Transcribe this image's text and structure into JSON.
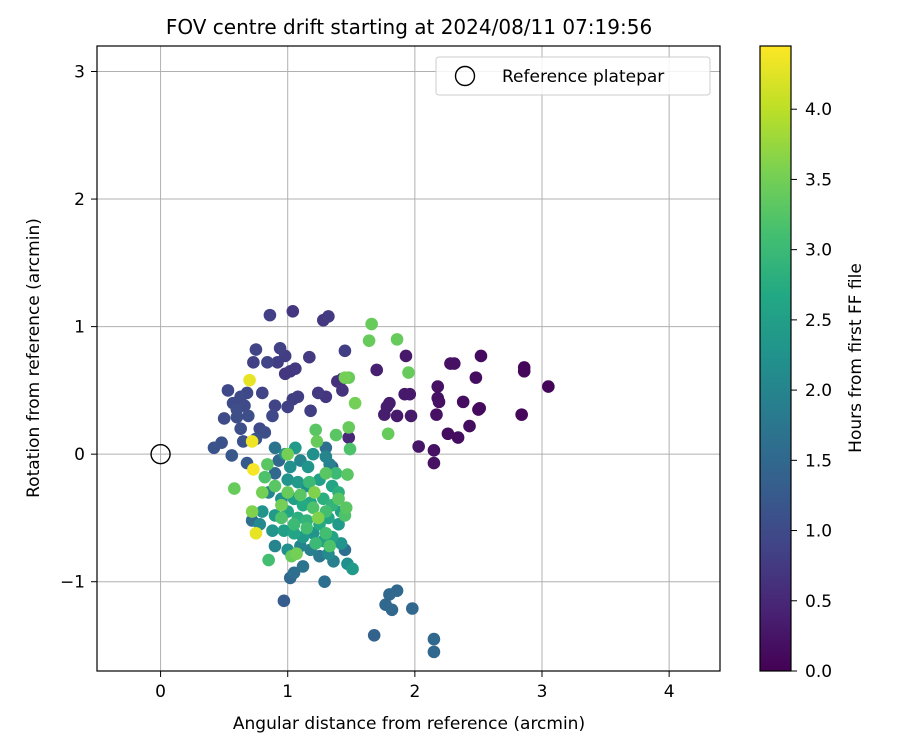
{
  "chart_data": {
    "type": "scatter",
    "title": "FOV centre drift starting at 2024/08/11 07:19:56",
    "xlabel": "Angular distance from reference (arcmin)",
    "ylabel": "Rotation from reference (arcmin)",
    "xlim": [
      -0.5,
      4.4
    ],
    "ylim": [
      -1.7,
      3.2
    ],
    "xticks": [
      0,
      1,
      2,
      3,
      4
    ],
    "xtick_labels": [
      "0",
      "1",
      "2",
      "3",
      "4"
    ],
    "yticks": [
      -1,
      0,
      1,
      2,
      3
    ],
    "ytick_labels": [
      "−1",
      "0",
      "1",
      "2",
      "3"
    ],
    "grid": true,
    "legend": {
      "placement": "top-right",
      "entries": [
        {
          "label": "Reference platepar",
          "marker": "open-circle"
        }
      ]
    },
    "reference_point": {
      "x": 0,
      "y": 0,
      "label": "Reference platepar"
    },
    "colorbar": {
      "label": "Hours from first FF file",
      "colormap": "viridis",
      "range": [
        0,
        4.45
      ],
      "ticks": [
        0.0,
        0.5,
        1.0,
        1.5,
        2.0,
        2.5,
        3.0,
        3.5,
        4.0
      ],
      "tick_labels": [
        "0.0",
        "0.5",
        "1.0",
        "1.5",
        "2.0",
        "2.5",
        "3.0",
        "3.5",
        "4.0"
      ]
    },
    "points": [
      {
        "x": 1.04,
        "y": 1.12,
        "t": 0.7
      },
      {
        "x": 1.28,
        "y": 1.05,
        "t": 0.7
      },
      {
        "x": 1.32,
        "y": 1.08,
        "t": 0.75
      },
      {
        "x": 0.86,
        "y": 1.09,
        "t": 0.85
      },
      {
        "x": 0.75,
        "y": 0.82,
        "t": 0.9
      },
      {
        "x": 0.94,
        "y": 0.83,
        "t": 0.85
      },
      {
        "x": 0.98,
        "y": 0.77,
        "t": 0.8
      },
      {
        "x": 0.73,
        "y": 0.72,
        "t": 0.85
      },
      {
        "x": 0.84,
        "y": 0.72,
        "t": 0.9
      },
      {
        "x": 0.92,
        "y": 0.72,
        "t": 0.8
      },
      {
        "x": 1.17,
        "y": 0.76,
        "t": 0.75
      },
      {
        "x": 1.45,
        "y": 0.81,
        "t": 0.8
      },
      {
        "x": 1.02,
        "y": 0.65,
        "t": 0.7
      },
      {
        "x": 1.06,
        "y": 0.67,
        "t": 0.75
      },
      {
        "x": 0.98,
        "y": 0.63,
        "t": 0.7
      },
      {
        "x": 1.39,
        "y": 0.57,
        "t": 0.6
      },
      {
        "x": 1.43,
        "y": 0.59,
        "t": 0.6
      },
      {
        "x": 0.53,
        "y": 0.5,
        "t": 0.95
      },
      {
        "x": 0.63,
        "y": 0.45,
        "t": 1.0
      },
      {
        "x": 0.68,
        "y": 0.48,
        "t": 0.95
      },
      {
        "x": 0.8,
        "y": 0.48,
        "t": 0.9
      },
      {
        "x": 0.57,
        "y": 0.4,
        "t": 1.0
      },
      {
        "x": 0.6,
        "y": 0.35,
        "t": 1.05
      },
      {
        "x": 0.66,
        "y": 0.38,
        "t": 1.0
      },
      {
        "x": 0.69,
        "y": 0.3,
        "t": 1.05
      },
      {
        "x": 0.5,
        "y": 0.28,
        "t": 1.0
      },
      {
        "x": 0.6,
        "y": 0.29,
        "t": 1.05
      },
      {
        "x": 0.9,
        "y": 0.38,
        "t": 0.9
      },
      {
        "x": 1.0,
        "y": 0.37,
        "t": 0.85
      },
      {
        "x": 1.04,
        "y": 0.43,
        "t": 0.8
      },
      {
        "x": 1.08,
        "y": 0.45,
        "t": 0.8
      },
      {
        "x": 1.24,
        "y": 0.48,
        "t": 0.75
      },
      {
        "x": 1.3,
        "y": 0.45,
        "t": 0.7
      },
      {
        "x": 1.43,
        "y": 0.5,
        "t": 0.65
      },
      {
        "x": 1.18,
        "y": 0.34,
        "t": 0.8
      },
      {
        "x": 0.88,
        "y": 0.3,
        "t": 0.95
      },
      {
        "x": 0.63,
        "y": 0.2,
        "t": 1.05
      },
      {
        "x": 0.78,
        "y": 0.2,
        "t": 1.0
      },
      {
        "x": 0.82,
        "y": 0.17,
        "t": 1.05
      },
      {
        "x": 0.65,
        "y": 0.1,
        "t": 1.1
      },
      {
        "x": 0.75,
        "y": 0.12,
        "t": 1.1
      },
      {
        "x": 0.48,
        "y": 0.09,
        "t": 1.1
      },
      {
        "x": 0.42,
        "y": 0.05,
        "t": 1.15
      },
      {
        "x": 0.56,
        "y": -0.01,
        "t": 1.2
      },
      {
        "x": 0.68,
        "y": -0.07,
        "t": 1.25
      },
      {
        "x": 1.48,
        "y": 0.13,
        "t": 0.5
      },
      {
        "x": 1.7,
        "y": 0.66,
        "t": 0.4
      },
      {
        "x": 1.78,
        "y": 0.37,
        "t": 0.35
      },
      {
        "x": 1.8,
        "y": 0.4,
        "t": 0.35
      },
      {
        "x": 1.76,
        "y": 0.31,
        "t": 0.35
      },
      {
        "x": 1.86,
        "y": 0.3,
        "t": 0.3
      },
      {
        "x": 1.92,
        "y": 0.47,
        "t": 0.3
      },
      {
        "x": 1.96,
        "y": 0.47,
        "t": 0.3
      },
      {
        "x": 1.93,
        "y": 0.77,
        "t": 0.3
      },
      {
        "x": 1.97,
        "y": 0.3,
        "t": 0.3
      },
      {
        "x": 2.03,
        "y": 0.06,
        "t": 0.25
      },
      {
        "x": 2.15,
        "y": 0.03,
        "t": 0.2
      },
      {
        "x": 2.15,
        "y": -0.07,
        "t": 0.2
      },
      {
        "x": 2.17,
        "y": 0.31,
        "t": 0.2
      },
      {
        "x": 2.18,
        "y": 0.44,
        "t": 0.2
      },
      {
        "x": 2.18,
        "y": 0.53,
        "t": 0.2
      },
      {
        "x": 2.19,
        "y": 0.41,
        "t": 0.2
      },
      {
        "x": 2.28,
        "y": 0.71,
        "t": 0.2
      },
      {
        "x": 2.31,
        "y": 0.71,
        "t": 0.2
      },
      {
        "x": 2.26,
        "y": 0.16,
        "t": 0.15
      },
      {
        "x": 2.34,
        "y": 0.13,
        "t": 0.15
      },
      {
        "x": 2.38,
        "y": 0.41,
        "t": 0.15
      },
      {
        "x": 2.43,
        "y": 0.22,
        "t": 0.15
      },
      {
        "x": 2.48,
        "y": 0.6,
        "t": 0.15
      },
      {
        "x": 2.5,
        "y": 0.35,
        "t": 0.12
      },
      {
        "x": 2.51,
        "y": 0.36,
        "t": 0.12
      },
      {
        "x": 2.52,
        "y": 0.77,
        "t": 0.12
      },
      {
        "x": 2.84,
        "y": 0.31,
        "t": 0.08
      },
      {
        "x": 2.86,
        "y": 0.68,
        "t": 0.08
      },
      {
        "x": 2.86,
        "y": 0.65,
        "t": 0.08
      },
      {
        "x": 3.05,
        "y": 0.53,
        "t": 0.05
      },
      {
        "x": 1.66,
        "y": 1.02,
        "t": 3.4
      },
      {
        "x": 1.86,
        "y": 0.9,
        "t": 3.4
      },
      {
        "x": 1.64,
        "y": 0.89,
        "t": 3.4
      },
      {
        "x": 1.95,
        "y": 0.64,
        "t": 3.4
      },
      {
        "x": 1.48,
        "y": 0.6,
        "t": 3.4
      },
      {
        "x": 1.45,
        "y": 0.6,
        "t": 3.5
      },
      {
        "x": 1.53,
        "y": 0.4,
        "t": 3.5
      },
      {
        "x": 1.79,
        "y": 0.16,
        "t": 3.4
      },
      {
        "x": 1.48,
        "y": 0.21,
        "t": 3.4
      },
      {
        "x": 1.38,
        "y": 0.15,
        "t": 3.3
      },
      {
        "x": 1.22,
        "y": 0.19,
        "t": 3.3
      },
      {
        "x": 1.23,
        "y": 0.1,
        "t": 3.4
      },
      {
        "x": 1.49,
        "y": 0.04,
        "t": 3.2
      },
      {
        "x": 1.47,
        "y": -0.16,
        "t": 3.3
      },
      {
        "x": 1.0,
        "y": 0.0,
        "t": 3.5
      },
      {
        "x": 0.58,
        "y": -0.27,
        "t": 3.4
      },
      {
        "x": 0.7,
        "y": 0.58,
        "t": 4.3
      },
      {
        "x": 0.72,
        "y": 0.1,
        "t": 4.35
      },
      {
        "x": 0.73,
        "y": -0.12,
        "t": 4.4
      },
      {
        "x": 0.75,
        "y": -0.62,
        "t": 4.3
      },
      {
        "x": 0.72,
        "y": -0.45,
        "t": 3.6
      },
      {
        "x": 0.8,
        "y": -0.3,
        "t": 3.5
      },
      {
        "x": 0.84,
        "y": -0.08,
        "t": 3.3
      },
      {
        "x": 0.85,
        "y": -0.83,
        "t": 3.1
      },
      {
        "x": 1.07,
        "y": -0.78,
        "t": 3.5
      },
      {
        "x": 1.06,
        "y": 0.05,
        "t": 2.4
      },
      {
        "x": 1.16,
        "y": -0.1,
        "t": 2.3
      },
      {
        "x": 1.21,
        "y": -0.3,
        "t": 3.6
      },
      {
        "x": 1.24,
        "y": -0.5,
        "t": 3.6
      },
      {
        "x": 1.3,
        "y": -0.15,
        "t": 3.3
      },
      {
        "x": 1.46,
        "y": -0.42,
        "t": 3.3
      },
      {
        "x": 0.98,
        "y": 0.0,
        "t": 2.2
      },
      {
        "x": 0.9,
        "y": 0.05,
        "t": 1.7
      },
      {
        "x": 1.02,
        "y": -0.1,
        "t": 2.2
      },
      {
        "x": 1.1,
        "y": -0.05,
        "t": 2.0
      },
      {
        "x": 1.2,
        "y": 0.0,
        "t": 2.2
      },
      {
        "x": 1.3,
        "y": -0.02,
        "t": 2.0
      },
      {
        "x": 1.33,
        "y": -0.08,
        "t": 1.9
      },
      {
        "x": 0.9,
        "y": -0.15,
        "t": 1.5
      },
      {
        "x": 1.0,
        "y": -0.2,
        "t": 2.3
      },
      {
        "x": 1.08,
        "y": -0.22,
        "t": 2.4
      },
      {
        "x": 1.15,
        "y": -0.25,
        "t": 2.2
      },
      {
        "x": 1.25,
        "y": -0.2,
        "t": 2.5
      },
      {
        "x": 1.35,
        "y": -0.25,
        "t": 2.6
      },
      {
        "x": 1.4,
        "y": -0.3,
        "t": 2.8
      },
      {
        "x": 0.85,
        "y": -0.3,
        "t": 2.0
      },
      {
        "x": 0.95,
        "y": -0.35,
        "t": 2.2
      },
      {
        "x": 1.05,
        "y": -0.35,
        "t": 2.5
      },
      {
        "x": 1.12,
        "y": -0.4,
        "t": 2.7
      },
      {
        "x": 1.18,
        "y": -0.38,
        "t": 2.6
      },
      {
        "x": 1.28,
        "y": -0.35,
        "t": 2.8
      },
      {
        "x": 1.35,
        "y": -0.4,
        "t": 2.9
      },
      {
        "x": 1.42,
        "y": -0.45,
        "t": 2.5
      },
      {
        "x": 0.8,
        "y": -0.45,
        "t": 2.3
      },
      {
        "x": 0.9,
        "y": -0.48,
        "t": 2.4
      },
      {
        "x": 1.0,
        "y": -0.45,
        "t": 2.6
      },
      {
        "x": 1.08,
        "y": -0.5,
        "t": 2.8
      },
      {
        "x": 1.15,
        "y": -0.52,
        "t": 2.9
      },
      {
        "x": 1.25,
        "y": -0.55,
        "t": 2.7
      },
      {
        "x": 1.32,
        "y": -0.5,
        "t": 2.6
      },
      {
        "x": 1.4,
        "y": -0.55,
        "t": 2.4
      },
      {
        "x": 0.78,
        "y": -0.55,
        "t": 2.1
      },
      {
        "x": 0.88,
        "y": -0.6,
        "t": 2.3
      },
      {
        "x": 0.97,
        "y": -0.6,
        "t": 2.5
      },
      {
        "x": 1.05,
        "y": -0.62,
        "t": 2.6
      },
      {
        "x": 1.12,
        "y": -0.65,
        "t": 2.4
      },
      {
        "x": 1.2,
        "y": -0.62,
        "t": 2.3
      },
      {
        "x": 1.28,
        "y": -0.68,
        "t": 2.5
      },
      {
        "x": 1.35,
        "y": -0.65,
        "t": 2.6
      },
      {
        "x": 1.42,
        "y": -0.7,
        "t": 2.3
      },
      {
        "x": 0.72,
        "y": -0.52,
        "t": 1.6
      },
      {
        "x": 0.9,
        "y": -0.72,
        "t": 2.0
      },
      {
        "x": 1.0,
        "y": -0.75,
        "t": 2.2
      },
      {
        "x": 1.1,
        "y": -0.72,
        "t": 2.0
      },
      {
        "x": 1.18,
        "y": -0.75,
        "t": 1.9
      },
      {
        "x": 1.25,
        "y": -0.8,
        "t": 1.8
      },
      {
        "x": 1.32,
        "y": -0.78,
        "t": 2.1
      },
      {
        "x": 1.45,
        "y": -0.75,
        "t": 1.6
      },
      {
        "x": 1.36,
        "y": -0.84,
        "t": 1.9
      },
      {
        "x": 1.47,
        "y": -0.86,
        "t": 2.2
      },
      {
        "x": 1.51,
        "y": -0.9,
        "t": 2.4
      },
      {
        "x": 1.12,
        "y": -0.88,
        "t": 1.7
      },
      {
        "x": 1.05,
        "y": -0.93,
        "t": 1.6
      },
      {
        "x": 1.02,
        "y": -0.97,
        "t": 1.5
      },
      {
        "x": 1.29,
        "y": -1.0,
        "t": 1.6
      },
      {
        "x": 0.97,
        "y": -1.15,
        "t": 1.3
      },
      {
        "x": 0.93,
        "y": -0.05,
        "t": 1.5
      },
      {
        "x": 1.3,
        "y": 0.05,
        "t": 1.6
      },
      {
        "x": 1.35,
        "y": -0.1,
        "t": 1.4
      },
      {
        "x": 1.86,
        "y": -1.07,
        "t": 1.5
      },
      {
        "x": 1.8,
        "y": -1.1,
        "t": 1.5
      },
      {
        "x": 1.77,
        "y": -1.18,
        "t": 1.5
      },
      {
        "x": 1.82,
        "y": -1.22,
        "t": 1.5
      },
      {
        "x": 1.98,
        "y": -1.21,
        "t": 1.5
      },
      {
        "x": 1.68,
        "y": -1.42,
        "t": 1.4
      },
      {
        "x": 2.15,
        "y": -1.45,
        "t": 1.5
      },
      {
        "x": 2.15,
        "y": -1.55,
        "t": 1.5
      },
      {
        "x": 0.9,
        "y": -0.25,
        "t": 3.3
      },
      {
        "x": 1.0,
        "y": -0.3,
        "t": 3.4
      },
      {
        "x": 1.1,
        "y": -0.32,
        "t": 3.3
      },
      {
        "x": 1.2,
        "y": -0.42,
        "t": 3.2
      },
      {
        "x": 1.3,
        "y": -0.45,
        "t": 3.1
      },
      {
        "x": 0.95,
        "y": -0.5,
        "t": 3.2
      },
      {
        "x": 1.05,
        "y": -0.55,
        "t": 3.0
      },
      {
        "x": 1.15,
        "y": -0.58,
        "t": 3.1
      },
      {
        "x": 1.22,
        "y": -0.7,
        "t": 3.0
      },
      {
        "x": 1.3,
        "y": -0.62,
        "t": 3.1
      },
      {
        "x": 1.4,
        "y": -0.35,
        "t": 3.3
      },
      {
        "x": 1.45,
        "y": -0.48,
        "t": 3.2
      },
      {
        "x": 1.03,
        "y": -0.8,
        "t": 3.4
      },
      {
        "x": 0.82,
        "y": -0.18,
        "t": 3.2
      },
      {
        "x": 1.17,
        "y": -0.22,
        "t": 3.0
      },
      {
        "x": 1.38,
        "y": -0.15,
        "t": 3.0
      },
      {
        "x": 0.95,
        "y": -0.4,
        "t": 3.5
      },
      {
        "x": 1.33,
        "y": -0.72,
        "t": 3.2
      }
    ]
  }
}
